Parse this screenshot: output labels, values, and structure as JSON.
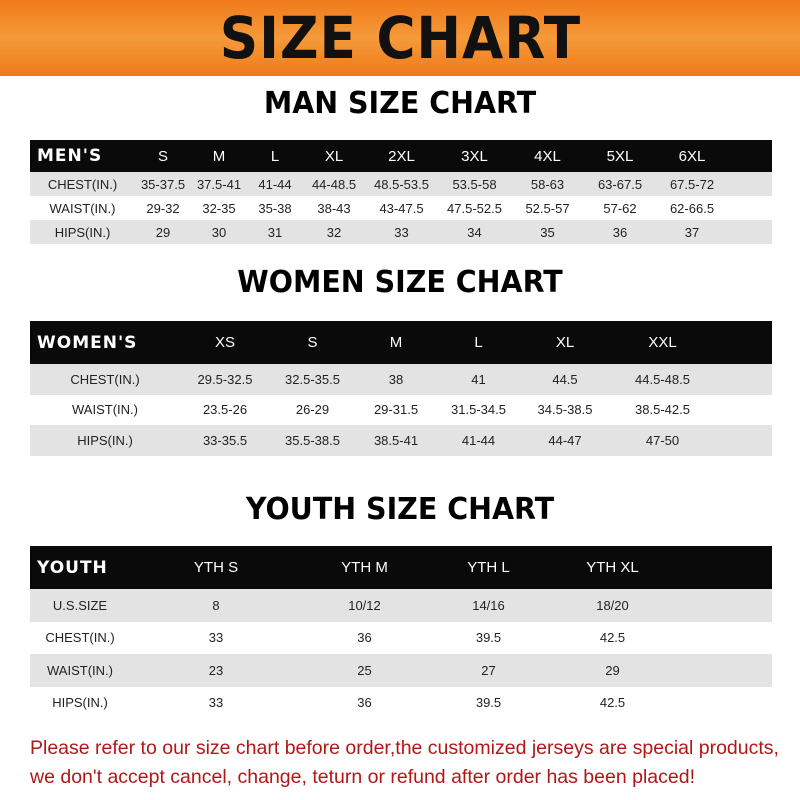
{
  "header": {
    "title": "SIZE CHART"
  },
  "men": {
    "title": "MAN SIZE CHART",
    "columns": [
      "MEN'S",
      "S",
      "M",
      "L",
      "XL",
      "2XL",
      "3XL",
      "4XL",
      "5XL",
      "6XL"
    ],
    "rows": [
      [
        "CHEST(IN.)",
        "35-37.5",
        "37.5-41",
        "41-44",
        "44-48.5",
        "48.5-53.5",
        "53.5-58",
        "58-63",
        "63-67.5",
        "67.5-72"
      ],
      [
        "WAIST(IN.)",
        "29-32",
        "32-35",
        "35-38",
        "38-43",
        "43-47.5",
        "47.5-52.5",
        "52.5-57",
        "57-62",
        "62-66.5"
      ],
      [
        "HIPS(IN.)",
        "29",
        "30",
        "31",
        "32",
        "33",
        "34",
        "35",
        "36",
        "37"
      ]
    ]
  },
  "women": {
    "title": "WOMEN SIZE CHART",
    "columns": [
      "WOMEN'S",
      "XS",
      "S",
      "M",
      "L",
      "XL",
      "XXL"
    ],
    "rows": [
      [
        "CHEST(IN.)",
        "29.5-32.5",
        "32.5-35.5",
        "38",
        "41",
        "44.5",
        "44.5-48.5"
      ],
      [
        "WAIST(IN.)",
        "23.5-26",
        "26-29",
        "29-31.5",
        "31.5-34.5",
        "34.5-38.5",
        "38.5-42.5"
      ],
      [
        "HIPS(IN.)",
        "33-35.5",
        "35.5-38.5",
        "38.5-41",
        "41-44",
        "44-47",
        "47-50"
      ]
    ]
  },
  "youth": {
    "title": "YOUTH SIZE CHART",
    "columns": [
      "YOUTH",
      "YTH S",
      "YTH M",
      "YTH L",
      "YTH XL"
    ],
    "rows": [
      [
        "U.S.SIZE",
        "8",
        "10/12",
        "14/16",
        "18/20"
      ],
      [
        "CHEST(IN.)",
        "33",
        "36",
        "39.5",
        "42.5"
      ],
      [
        "WAIST(IN.)",
        "23",
        "25",
        "27",
        "29"
      ],
      [
        "HIPS(IN.)",
        "33",
        "36",
        "39.5",
        "42.5"
      ]
    ]
  },
  "notice": {
    "line1": "Please refer to our size chart before order,the customized jerseys are special products,",
    "line2": "we don't accept cancel, change, teturn or refund after order has been placed!"
  },
  "colors": {
    "banner": "#f07a1a",
    "header_row": "#0a0a0a",
    "stripe": "#e3e3e3",
    "notice": "#b01818"
  }
}
